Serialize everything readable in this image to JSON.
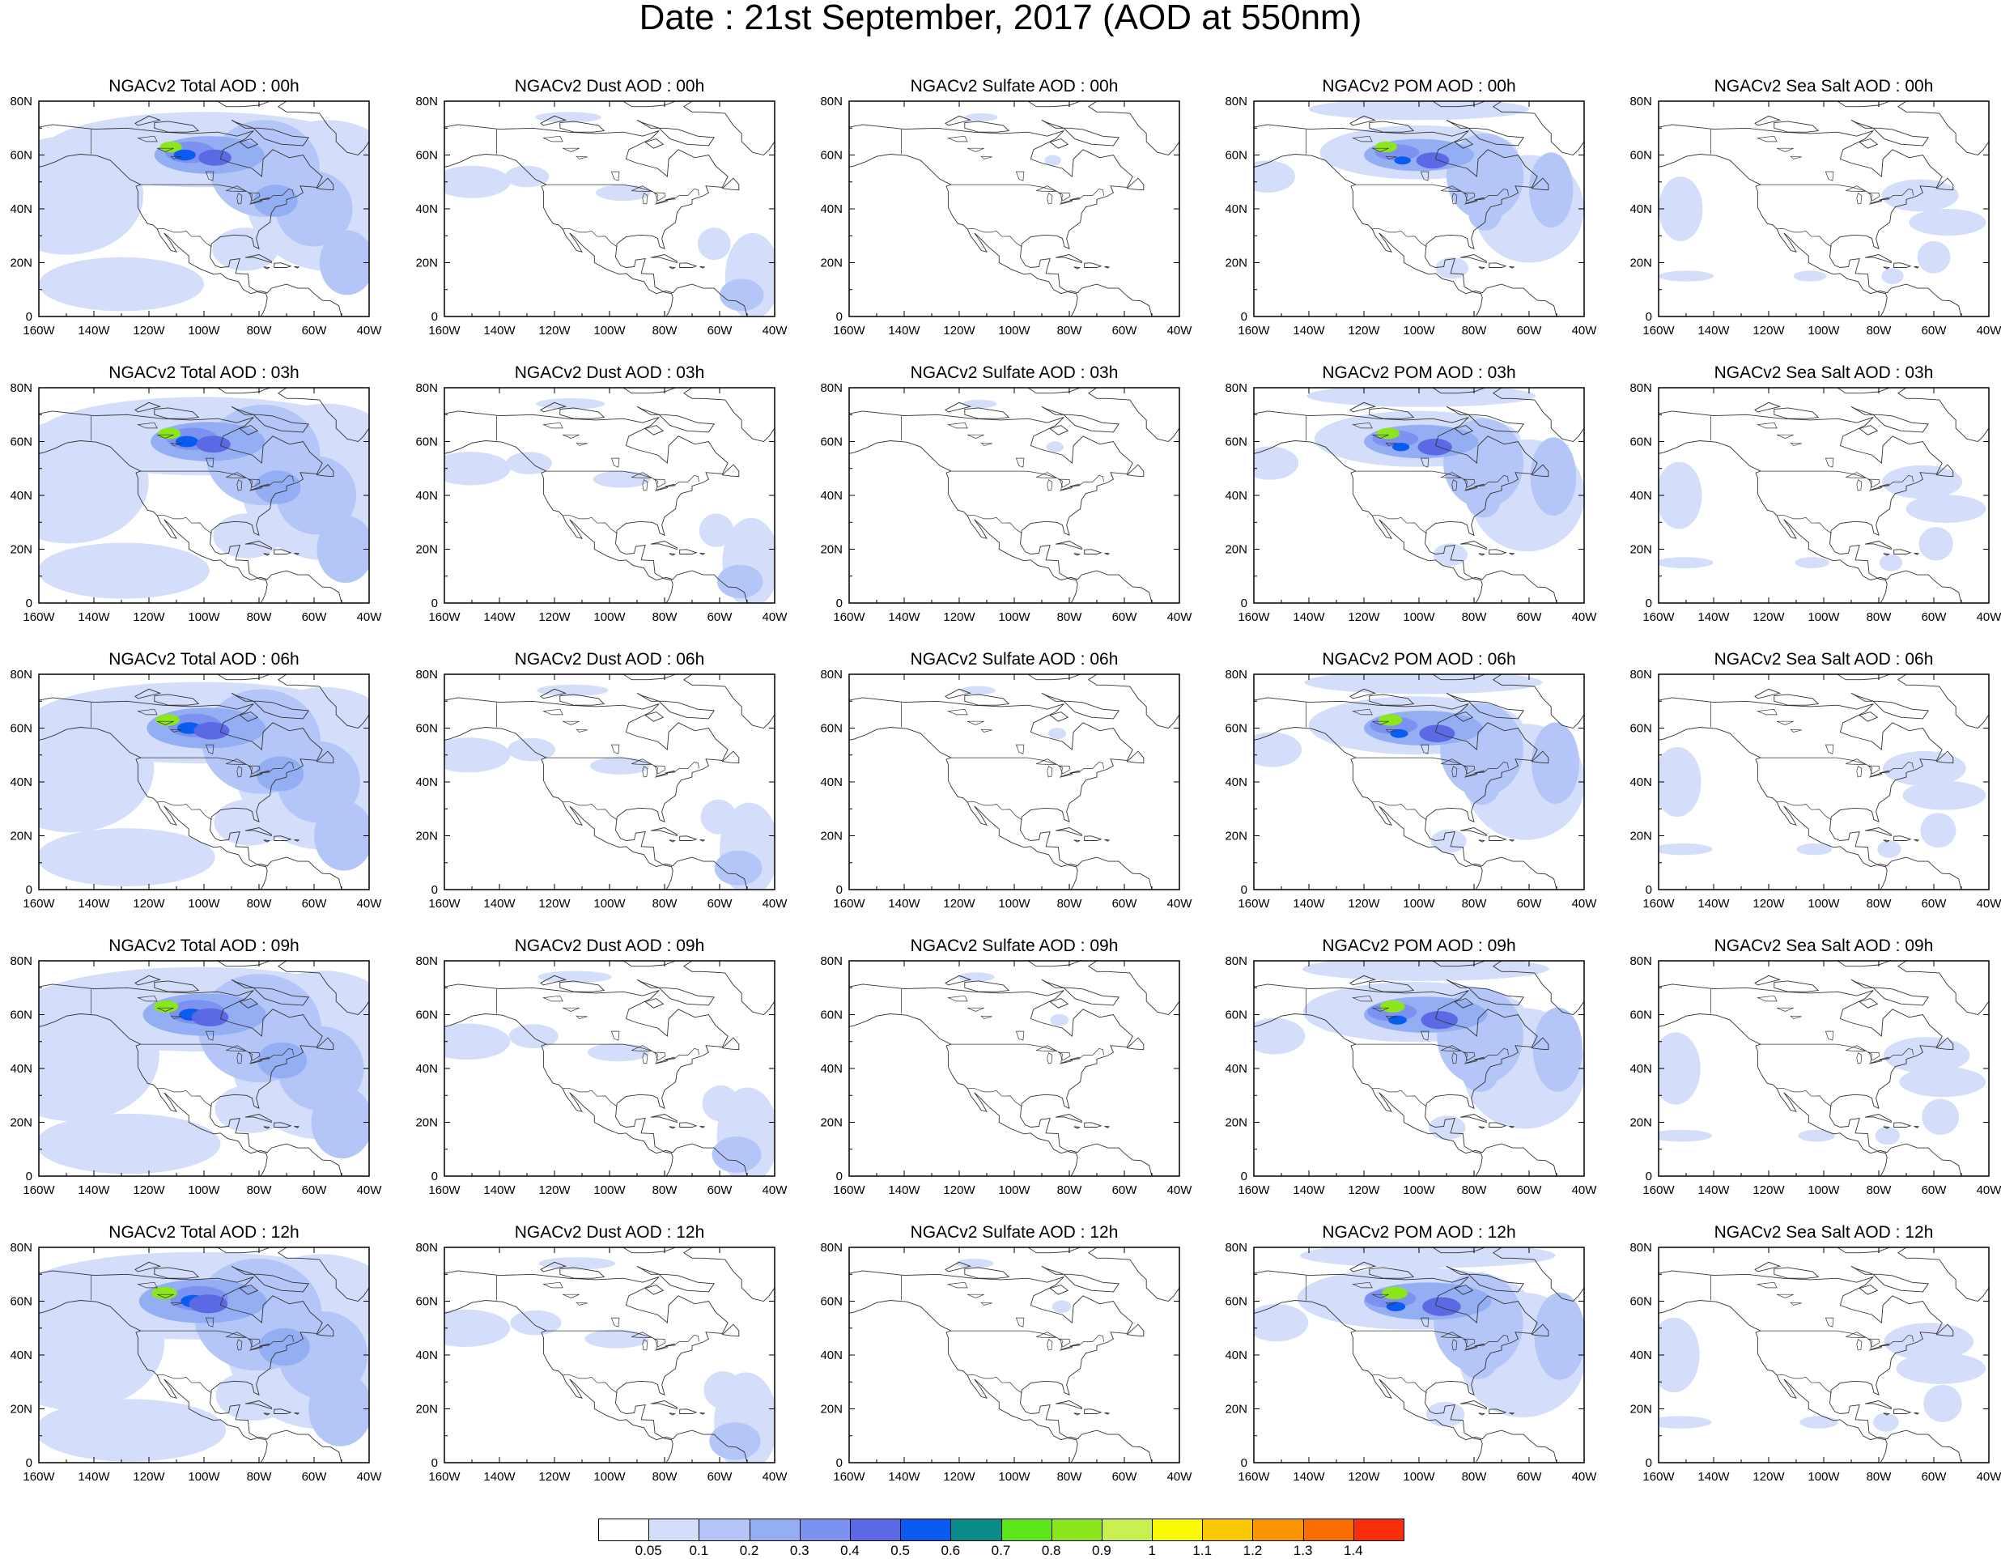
{
  "figure": {
    "title": "Date : 21st September, 2017 (AOD at 550nm)"
  },
  "axes": {
    "lon_labels": [
      "160W",
      "140W",
      "120W",
      "100W",
      "80W",
      "60W",
      "40W"
    ],
    "lat_labels": [
      "0",
      "20N",
      "40N",
      "60N",
      "80N"
    ],
    "lon_range": [
      -160,
      -40
    ],
    "lat_range": [
      0,
      80
    ]
  },
  "panel_titles": [
    [
      "NGACv2 Total AOD : 00h",
      "NGACv2 Dust AOD : 00h",
      "NGACv2 Sulfate AOD : 00h",
      "NGACv2 POM AOD : 00h",
      "NGACv2 Sea Salt AOD : 00h"
    ],
    [
      "NGACv2 Total AOD : 03h",
      "NGACv2 Dust AOD : 03h",
      "NGACv2 Sulfate AOD : 03h",
      "NGACv2 POM AOD : 03h",
      "NGACv2 Sea Salt AOD : 03h"
    ],
    [
      "NGACv2 Total AOD : 06h",
      "NGACv2 Dust AOD : 06h",
      "NGACv2 Sulfate AOD : 06h",
      "NGACv2 POM AOD : 06h",
      "NGACv2 Sea Salt AOD : 06h"
    ],
    [
      "NGACv2 Total AOD : 09h",
      "NGACv2 Dust AOD : 09h",
      "NGACv2 Sulfate AOD : 09h",
      "NGACv2 POM AOD : 09h",
      "NGACv2 Sea Salt  AOD : 09h"
    ],
    [
      "NGACv2 Total AOD  : 12h",
      "NGACv2 Dust AOD : 12h",
      "NGACv2 Sulfate AOD : 12h",
      "NGACv2 POM  AOD : 12h",
      "NGACv2 Sea Salt  AOD : 12h"
    ]
  ],
  "colorbar": {
    "labels": [
      "0.05",
      "0.1",
      "0.2",
      "0.3",
      "0.4",
      "0.5",
      "0.6",
      "0.7",
      "0.8",
      "0.9",
      "1",
      "1.1",
      "1.2",
      "1.3",
      "1.4"
    ],
    "colors": [
      "#ffffff",
      "#d4defa",
      "#b4c6f7",
      "#94aef4",
      "#7d92f0",
      "#5b69e4",
      "#0a5cf0",
      "#0a8c8a",
      "#5ce61c",
      "#8ce61c",
      "#c8f050",
      "#fafa00",
      "#fac800",
      "#fa9600",
      "#fa6e00",
      "#fa2d0a"
    ]
  },
  "colors": {
    "land_outline": "#333333",
    "light_aod": "#d4defa",
    "mid_aod": "#b4c6f7",
    "high_aod": "#94aef4"
  }
}
